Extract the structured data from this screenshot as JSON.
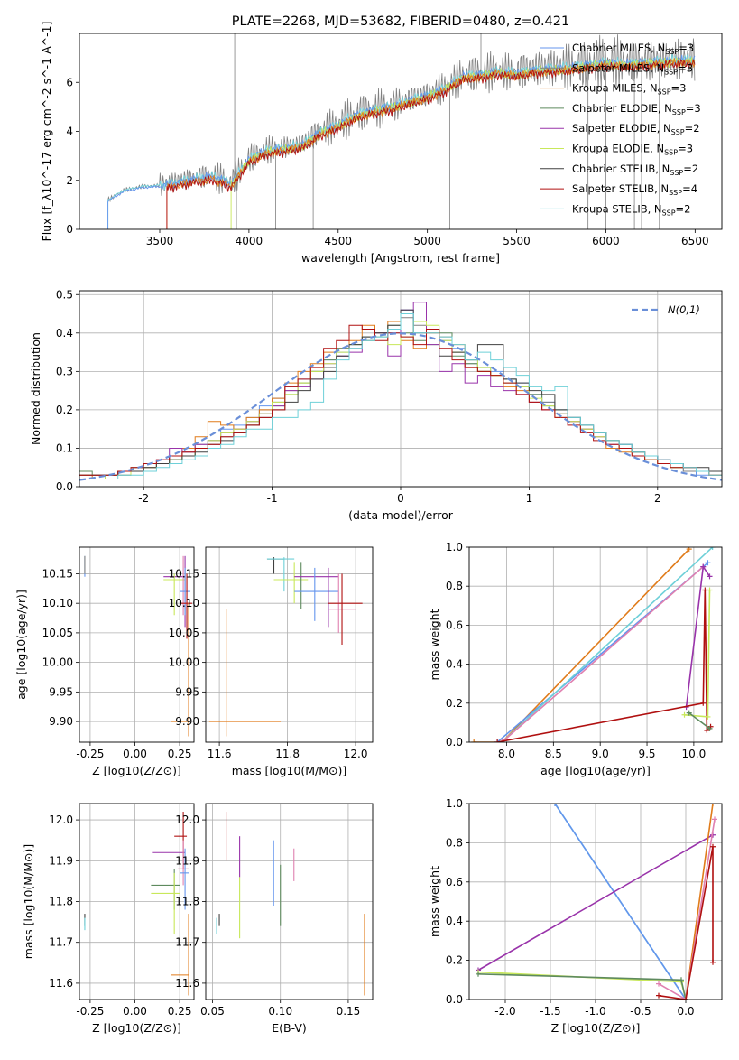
{
  "colors": {
    "Chabrier MILES": "#6495ed",
    "Salpeter MILES": "#808080",
    "Kroupa MILES": "#e07b1a",
    "Chabrier ELODIE": "#5e8a5e",
    "Salpeter ELODIE": "#9933aa",
    "Kroupa ELODIE": "#c8e85a",
    "Chabrier STELIB": "#404040",
    "Salpeter STELIB": "#b01010",
    "Kroupa STELIB": "#6ed0d8",
    "pink": "#e080b0",
    "normal": "#6a8fd8"
  },
  "chart_data": [
    {
      "id": "spectrum",
      "type": "line",
      "title": "PLATE=2268, MJD=53682, FIBERID=0480, z=0.421",
      "xlabel": "wavelength [Angstrom, rest frame]",
      "ylabel": "Flux [f_λ10^-17 erg cm^-2 s^-1 A^-1]",
      "xlim": [
        3050,
        6650
      ],
      "ylim": [
        0,
        8
      ],
      "xticks": [
        3500,
        4000,
        4500,
        5000,
        5500,
        6000,
        6500
      ],
      "yticks": [
        0,
        2,
        4,
        6
      ],
      "legend_position": "upper-right",
      "legend": [
        {
          "name": "Chabrier MILES, N_SSP=3",
          "base": "Chabrier MILES",
          "nssp": "3"
        },
        {
          "name": "Salpeter MILES, N_SSP=3",
          "base": "Salpeter MILES",
          "nssp": "3"
        },
        {
          "name": "Kroupa MILES, N_SSP=3",
          "base": "Kroupa MILES",
          "nssp": "3"
        },
        {
          "name": "Chabrier ELODIE, N_SSP=3",
          "base": "Chabrier ELODIE",
          "nssp": "3"
        },
        {
          "name": "Salpeter ELODIE, N_SSP=2",
          "base": "Salpeter ELODIE",
          "nssp": "2"
        },
        {
          "name": "Kroupa ELODIE, N_SSP=3",
          "base": "Kroupa ELODIE",
          "nssp": "3"
        },
        {
          "name": "Chabrier STELIB, N_SSP=2",
          "base": "Chabrier STELIB",
          "nssp": "2"
        },
        {
          "name": "Salpeter STELIB, N_SSP=4",
          "base": "Salpeter STELIB",
          "nssp": "4"
        },
        {
          "name": "Kroupa STELIB, N_SSP=2",
          "base": "Kroupa STELIB",
          "nssp": "2"
        }
      ],
      "continuum": [
        [
          3210,
          1.2
        ],
        [
          3300,
          1.6
        ],
        [
          3400,
          1.75
        ],
        [
          3500,
          1.8
        ],
        [
          3600,
          1.95
        ],
        [
          3700,
          2.1
        ],
        [
          3800,
          2.2
        ],
        [
          3900,
          1.9
        ],
        [
          3950,
          2.4
        ],
        [
          4000,
          2.9
        ],
        [
          4100,
          3.25
        ],
        [
          4200,
          3.35
        ],
        [
          4300,
          3.5
        ],
        [
          4400,
          4.0
        ],
        [
          4500,
          4.3
        ],
        [
          4600,
          4.7
        ],
        [
          4700,
          4.9
        ],
        [
          4800,
          5.05
        ],
        [
          4900,
          5.3
        ],
        [
          5000,
          5.5
        ],
        [
          5100,
          5.8
        ],
        [
          5200,
          6.3
        ],
        [
          5300,
          6.35
        ],
        [
          5400,
          6.5
        ],
        [
          5500,
          6.4
        ],
        [
          5600,
          6.55
        ],
        [
          5700,
          6.6
        ],
        [
          5800,
          6.65
        ],
        [
          5900,
          6.75
        ],
        [
          6000,
          6.85
        ],
        [
          6100,
          6.8
        ],
        [
          6200,
          6.85
        ],
        [
          6300,
          6.9
        ],
        [
          6400,
          6.95
        ],
        [
          6500,
          6.95
        ]
      ],
      "model_starts": {
        "Kroupa MILES": 3540,
        "Salpeter STELIB": 3540,
        "Kroupa ELODIE": 3900,
        "Chabrier ELODIE": 3900,
        "Salpeter ELODIE": 3900,
        "Chabrier MILES": 3210,
        "Salpeter MILES": 3210,
        "Chabrier STELIB": 3210,
        "Kroupa STELIB": 3210
      },
      "data_spikes_to_zero": [
        3930,
        4150,
        4360,
        5125,
        5900,
        6000,
        6160,
        6200,
        6300
      ],
      "data_spikes_up": [
        3920,
        5300
      ]
    },
    {
      "id": "residuals",
      "type": "line",
      "xlabel": "(data-model)/error",
      "ylabel": "Normed distribution",
      "xlim": [
        -2.5,
        2.5
      ],
      "ylim": [
        0,
        0.51
      ],
      "xticks": [
        -2,
        -1,
        0,
        1,
        2
      ],
      "yticks": [
        0.0,
        0.1,
        0.2,
        0.3,
        0.4,
        0.5
      ],
      "legend_position": "upper-right",
      "legend": [
        {
          "name": "N(0,1)"
        }
      ],
      "bin_width": 0.1,
      "bin_start": -2.5,
      "series": [
        {
          "name": "Chabrier MILES",
          "values": [
            0.02,
            0.02,
            0.03,
            0.03,
            0.04,
            0.05,
            0.06,
            0.08,
            0.1,
            0.1,
            0.12,
            0.15,
            0.16,
            0.18,
            0.21,
            0.23,
            0.26,
            0.28,
            0.3,
            0.33,
            0.35,
            0.37,
            0.38,
            0.39,
            0.4,
            0.46,
            0.43,
            0.4,
            0.39,
            0.36,
            0.33,
            0.31,
            0.3,
            0.28,
            0.27,
            0.24,
            0.22,
            0.2,
            0.18,
            0.16,
            0.14,
            0.12,
            0.11,
            0.09,
            0.08,
            0.06,
            0.05,
            0.04,
            0.03,
            0.03
          ]
        },
        {
          "name": "Salpeter MILES",
          "values": [
            0.03,
            0.03,
            0.03,
            0.04,
            0.04,
            0.05,
            0.06,
            0.07,
            0.09,
            0.11,
            0.12,
            0.13,
            0.15,
            0.17,
            0.2,
            0.22,
            0.25,
            0.27,
            0.3,
            0.31,
            0.34,
            0.36,
            0.38,
            0.4,
            0.41,
            0.44,
            0.42,
            0.4,
            0.38,
            0.35,
            0.32,
            0.3,
            0.29,
            0.27,
            0.26,
            0.24,
            0.22,
            0.19,
            0.17,
            0.15,
            0.14,
            0.12,
            0.1,
            0.09,
            0.07,
            0.06,
            0.05,
            0.04,
            0.04,
            0.03
          ]
        },
        {
          "name": "Kroupa MILES",
          "values": [
            0.03,
            0.02,
            0.03,
            0.04,
            0.05,
            0.05,
            0.07,
            0.08,
            0.1,
            0.13,
            0.17,
            0.16,
            0.15,
            0.18,
            0.2,
            0.23,
            0.27,
            0.3,
            0.32,
            0.35,
            0.36,
            0.38,
            0.42,
            0.4,
            0.43,
            0.38,
            0.36,
            0.4,
            0.39,
            0.37,
            0.31,
            0.3,
            0.29,
            0.26,
            0.25,
            0.22,
            0.2,
            0.18,
            0.17,
            0.15,
            0.13,
            0.1,
            0.09,
            0.08,
            0.07,
            0.06,
            0.06,
            0.05,
            0.04,
            0.04
          ]
        },
        {
          "name": "Chabrier ELODIE",
          "values": [
            0.04,
            0.03,
            0.03,
            0.04,
            0.05,
            0.06,
            0.06,
            0.07,
            0.08,
            0.1,
            0.12,
            0.14,
            0.14,
            0.16,
            0.19,
            0.21,
            0.24,
            0.27,
            0.3,
            0.33,
            0.36,
            0.37,
            0.39,
            0.4,
            0.42,
            0.4,
            0.38,
            0.37,
            0.4,
            0.34,
            0.32,
            0.3,
            0.29,
            0.28,
            0.26,
            0.24,
            0.21,
            0.2,
            0.18,
            0.16,
            0.14,
            0.12,
            0.1,
            0.09,
            0.08,
            0.06,
            0.05,
            0.05,
            0.04,
            0.04
          ]
        },
        {
          "name": "Salpeter ELODIE",
          "values": [
            0.02,
            0.02,
            0.03,
            0.03,
            0.04,
            0.05,
            0.07,
            0.1,
            0.09,
            0.11,
            0.12,
            0.14,
            0.15,
            0.17,
            0.19,
            0.21,
            0.25,
            0.26,
            0.28,
            0.32,
            0.34,
            0.35,
            0.38,
            0.4,
            0.34,
            0.46,
            0.48,
            0.37,
            0.3,
            0.32,
            0.27,
            0.29,
            0.26,
            0.25,
            0.24,
            0.22,
            0.2,
            0.19,
            0.17,
            0.15,
            0.13,
            0.11,
            0.1,
            0.09,
            0.08,
            0.07,
            0.06,
            0.05,
            0.04,
            0.04
          ]
        },
        {
          "name": "Kroupa ELODIE",
          "values": [
            0.02,
            0.02,
            0.03,
            0.03,
            0.04,
            0.05,
            0.06,
            0.07,
            0.08,
            0.1,
            0.12,
            0.14,
            0.15,
            0.17,
            0.19,
            0.22,
            0.24,
            0.27,
            0.3,
            0.32,
            0.35,
            0.37,
            0.38,
            0.39,
            0.37,
            0.39,
            0.43,
            0.42,
            0.38,
            0.35,
            0.33,
            0.31,
            0.29,
            0.27,
            0.26,
            0.23,
            0.21,
            0.19,
            0.17,
            0.15,
            0.13,
            0.12,
            0.1,
            0.09,
            0.07,
            0.06,
            0.05,
            0.05,
            0.04,
            0.03
          ]
        },
        {
          "name": "Chabrier STELIB",
          "values": [
            0.03,
            0.03,
            0.03,
            0.04,
            0.04,
            0.05,
            0.06,
            0.07,
            0.08,
            0.09,
            0.11,
            0.12,
            0.14,
            0.16,
            0.18,
            0.2,
            0.22,
            0.25,
            0.28,
            0.3,
            0.34,
            0.37,
            0.39,
            0.4,
            0.42,
            0.46,
            0.4,
            0.41,
            0.34,
            0.35,
            0.33,
            0.37,
            0.37,
            0.28,
            0.27,
            0.25,
            0.24,
            0.2,
            0.18,
            0.16,
            0.14,
            0.12,
            0.11,
            0.09,
            0.08,
            0.07,
            0.06,
            0.05,
            0.05,
            0.04
          ]
        },
        {
          "name": "Salpeter STELIB",
          "values": [
            0.03,
            0.03,
            0.03,
            0.04,
            0.05,
            0.06,
            0.07,
            0.08,
            0.09,
            0.1,
            0.11,
            0.13,
            0.14,
            0.16,
            0.18,
            0.2,
            0.26,
            0.28,
            0.31,
            0.36,
            0.38,
            0.42,
            0.41,
            0.38,
            0.4,
            0.39,
            0.37,
            0.41,
            0.36,
            0.33,
            0.31,
            0.3,
            0.29,
            0.27,
            0.24,
            0.22,
            0.2,
            0.18,
            0.16,
            0.14,
            0.12,
            0.11,
            0.1,
            0.08,
            0.07,
            0.06,
            0.05,
            0.05,
            0.04,
            0.03
          ]
        },
        {
          "name": "Kroupa STELIB",
          "values": [
            0.02,
            0.02,
            0.02,
            0.03,
            0.03,
            0.04,
            0.05,
            0.06,
            0.07,
            0.08,
            0.1,
            0.11,
            0.13,
            0.15,
            0.15,
            0.18,
            0.18,
            0.2,
            0.22,
            0.28,
            0.33,
            0.36,
            0.38,
            0.39,
            0.41,
            0.45,
            0.4,
            0.4,
            0.39,
            0.37,
            0.33,
            0.35,
            0.33,
            0.31,
            0.29,
            0.26,
            0.25,
            0.26,
            0.18,
            0.16,
            0.14,
            0.12,
            0.11,
            0.09,
            0.08,
            0.07,
            0.06,
            0.05,
            0.04,
            0.03
          ]
        }
      ]
    },
    {
      "id": "age_vs_Z",
      "type": "scatter",
      "xlabel": "Z [log10(Z/Z⊙)]",
      "ylabel": "age [log10(age/yr)]",
      "xlim": [
        -0.31,
        0.33
      ],
      "ylim": [
        9.865,
        10.195
      ],
      "xticks": [
        -0.25,
        0.0,
        0.25
      ],
      "yticks": [
        9.9,
        9.95,
        10.0,
        10.05,
        10.1,
        10.15
      ]
    },
    {
      "id": "age_vs_mass",
      "type": "scatter",
      "xlabel": "mass [log10(M/M⊙)]",
      "ylabel": "",
      "xlim": [
        11.56,
        12.05
      ],
      "ylim": [
        9.865,
        10.195
      ],
      "xticks": [
        11.6,
        11.8,
        12.0
      ],
      "yticks": [
        9.9,
        9.95,
        10.0,
        10.05,
        10.1,
        10.15
      ]
    },
    {
      "id": "weight_vs_age",
      "type": "line",
      "xlabel": "age [log10(age/yr)]",
      "ylabel": "mass weight",
      "xlim": [
        7.6,
        10.3
      ],
      "ylim": [
        0,
        1
      ],
      "xticks": [
        8.0,
        8.5,
        9.0,
        9.5,
        10.0
      ],
      "yticks": [
        0.0,
        0.2,
        0.4,
        0.6,
        0.8,
        1.0
      ]
    },
    {
      "id": "mass_vs_Z",
      "type": "scatter",
      "xlabel": "Z [log10(Z/Z⊙)]",
      "ylabel": "mass [log10(M/M⊙)]",
      "xlim": [
        -0.31,
        0.33
      ],
      "ylim": [
        11.56,
        12.04
      ],
      "xticks": [
        -0.25,
        0.0,
        0.25
      ],
      "yticks": [
        11.6,
        11.7,
        11.8,
        11.9,
        12.0
      ]
    },
    {
      "id": "mass_vs_EBV",
      "type": "scatter",
      "xlabel": "E(B-V)",
      "ylabel": "",
      "xlim": [
        0.045,
        0.168
      ],
      "ylim": [
        11.56,
        12.04
      ],
      "xticks": [
        0.05,
        0.1,
        0.15
      ],
      "yticks": [
        11.6,
        11.7,
        11.8,
        11.9,
        12.0
      ]
    },
    {
      "id": "weight_vs_Z",
      "type": "line",
      "xlabel": "Z [log10(Z/Z⊙)]",
      "ylabel": "mass weight",
      "xlim": [
        -2.4,
        0.4
      ],
      "ylim": [
        0,
        1
      ],
      "xticks": [
        -2.0,
        -1.5,
        -1.0,
        -0.5,
        0.0
      ],
      "yticks": [
        0.0,
        0.2,
        0.4,
        0.6,
        0.8,
        1.0
      ]
    }
  ]
}
